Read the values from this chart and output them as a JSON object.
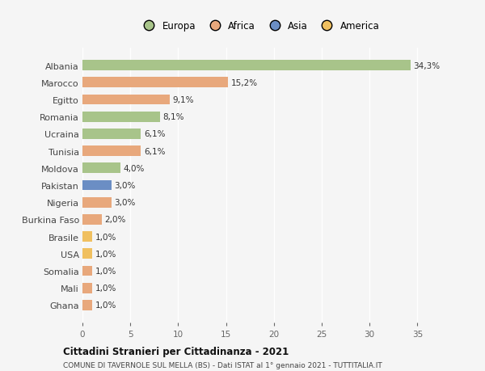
{
  "countries": [
    "Albania",
    "Marocco",
    "Egitto",
    "Romania",
    "Ucraina",
    "Tunisia",
    "Moldova",
    "Pakistan",
    "Nigeria",
    "Burkina Faso",
    "Brasile",
    "USA",
    "Somalia",
    "Mali",
    "Ghana"
  ],
  "values": [
    34.3,
    15.2,
    9.1,
    8.1,
    6.1,
    6.1,
    4.0,
    3.0,
    3.0,
    2.0,
    1.0,
    1.0,
    1.0,
    1.0,
    1.0
  ],
  "labels": [
    "34,3%",
    "15,2%",
    "9,1%",
    "8,1%",
    "6,1%",
    "6,1%",
    "4,0%",
    "3,0%",
    "3,0%",
    "2,0%",
    "1,0%",
    "1,0%",
    "1,0%",
    "1,0%",
    "1,0%"
  ],
  "colors": [
    "#a8c48a",
    "#e8a87c",
    "#e8a87c",
    "#a8c48a",
    "#a8c48a",
    "#e8a87c",
    "#a8c48a",
    "#6b8ec4",
    "#e8a87c",
    "#e8a87c",
    "#f0c060",
    "#f0c060",
    "#e8a87c",
    "#e8a87c",
    "#e8a87c"
  ],
  "legend": [
    {
      "label": "Europa",
      "color": "#a8c48a"
    },
    {
      "label": "Africa",
      "color": "#e8a87c"
    },
    {
      "label": "Asia",
      "color": "#6b8ec4"
    },
    {
      "label": "America",
      "color": "#f0c060"
    }
  ],
  "title1": "Cittadini Stranieri per Cittadinanza - 2021",
  "title2": "COMUNE DI TAVERNOLE SUL MELLA (BS) - Dati ISTAT al 1° gennaio 2021 - TUTTITALIA.IT",
  "xlim": [
    0,
    37
  ],
  "xticks": [
    0,
    5,
    10,
    15,
    20,
    25,
    30,
    35
  ],
  "background_color": "#f5f5f5",
  "grid_color": "#ffffff",
  "bar_height": 0.6
}
